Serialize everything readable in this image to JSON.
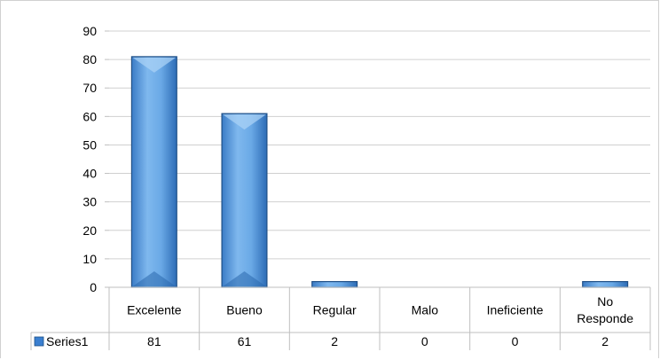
{
  "chart_data": {
    "type": "bar",
    "categories": [
      "Excelente",
      "Bueno",
      "Regular",
      "Malo",
      "Ineficiente",
      "No Responde"
    ],
    "category_lines": [
      [
        "Excelente"
      ],
      [
        "Bueno"
      ],
      [
        "Regular"
      ],
      [
        "Malo"
      ],
      [
        "Ineficiente"
      ],
      [
        "No",
        "Responde"
      ]
    ],
    "series": [
      {
        "name": "Series1",
        "values": [
          81,
          61,
          2,
          0,
          0,
          2
        ]
      }
    ],
    "ylim": [
      0,
      90
    ],
    "yticks": [
      0,
      10,
      20,
      30,
      40,
      50,
      60,
      70,
      80,
      90
    ],
    "grid": true,
    "legend_placement": "data-table-row",
    "data_table": true,
    "colors": {
      "bar_light": "#9ec9f2",
      "bar_mid": "#5fa2e4",
      "bar_dark": "#2f72bd",
      "bar_outline": "#1f4f86",
      "gridline": "#d0d0d0",
      "legend_key": "#3a7fd0"
    }
  }
}
